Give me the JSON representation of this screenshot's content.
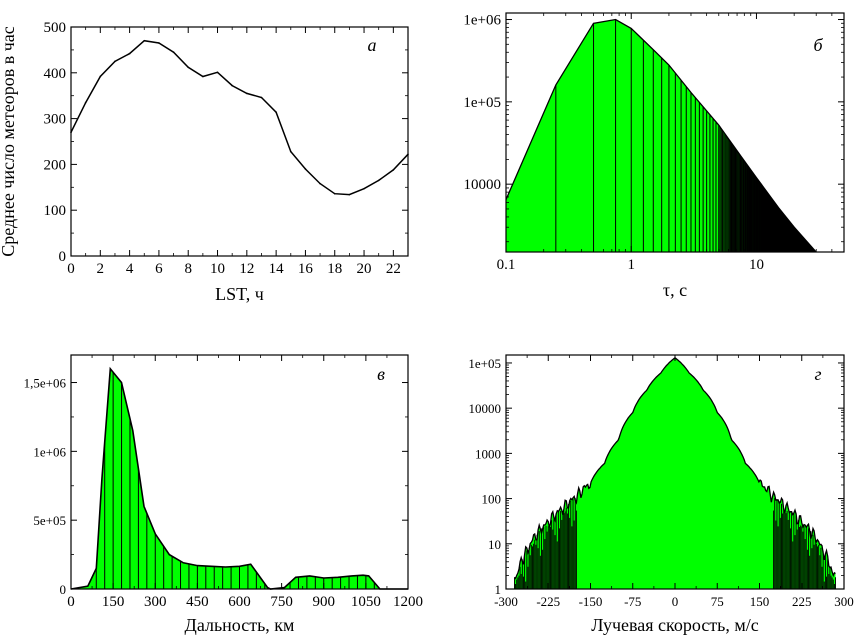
{
  "colors": {
    "fill": "#00ff00",
    "line": "#000000",
    "background": "#ffffff"
  },
  "chart_data": [
    {
      "id": "a",
      "type": "line",
      "panel_label": "а",
      "xlabel": "LST, ч",
      "ylabel": "Среднее число метеоров в час",
      "xlim": [
        0,
        23
      ],
      "ylim": [
        0,
        500
      ],
      "xticks": [
        "0",
        "2",
        "4",
        "6",
        "8",
        "10",
        "12",
        "14",
        "16",
        "18",
        "20",
        "22"
      ],
      "yticks": [
        "0",
        "100",
        "200",
        "300",
        "400",
        "500"
      ],
      "x": [
        0,
        1,
        2,
        3,
        4,
        5,
        6,
        7,
        8,
        9,
        10,
        11,
        12,
        13,
        14,
        15,
        16,
        17,
        18,
        19,
        20,
        21,
        22,
        23
      ],
      "y": [
        270,
        335,
        392,
        425,
        442,
        470,
        465,
        445,
        412,
        392,
        401,
        372,
        355,
        346,
        314,
        228,
        190,
        158,
        136,
        134,
        147,
        165,
        188,
        222
      ]
    },
    {
      "id": "b",
      "type": "area",
      "panel_label": "б",
      "xlabel": "τ, с",
      "ylabel": "",
      "xscale": "log",
      "yscale": "log",
      "xlim": [
        0.1,
        50
      ],
      "ylim": [
        1500,
        1200000
      ],
      "xticks": [
        "0.1",
        "1",
        "10"
      ],
      "yticks": [
        "10000",
        "1e+05",
        "1e+06"
      ],
      "x": [
        0.1,
        0.25,
        0.5,
        0.75,
        1.0,
        1.5,
        2.0,
        3.0,
        5.0,
        7.5,
        10,
        15,
        20,
        30
      ],
      "y": [
        6500,
        160000,
        900000,
        1000000,
        780000,
        430000,
        280000,
        130000,
        52000,
        22000,
        12000,
        5200,
        3000,
        1500
      ]
    },
    {
      "id": "c",
      "type": "area",
      "panel_label": "в",
      "xlabel": "Дальность, км",
      "ylabel": "",
      "xlim": [
        0,
        1200
      ],
      "ylim": [
        0,
        1700000
      ],
      "xticks": [
        "0",
        "150",
        "300",
        "450",
        "600",
        "750",
        "900",
        "1050",
        "1200"
      ],
      "yticks": [
        "0",
        "5e+05",
        "1e+06",
        "1,5e+06"
      ],
      "x": [
        0,
        60,
        90,
        110,
        140,
        180,
        220,
        260,
        300,
        350,
        400,
        450,
        500,
        550,
        600,
        640,
        700,
        710,
        760,
        800,
        850,
        900,
        950,
        1000,
        1040,
        1060,
        1100,
        1200
      ],
      "y": [
        0,
        20000,
        150000,
        800000,
        1600000,
        1500000,
        1150000,
        600000,
        400000,
        250000,
        190000,
        170000,
        165000,
        160000,
        165000,
        180000,
        10000,
        0,
        10000,
        85000,
        95000,
        80000,
        85000,
        95000,
        100000,
        95000,
        0,
        0
      ]
    },
    {
      "id": "d",
      "type": "area",
      "panel_label": "г",
      "xlabel": "Лучевая скорость, м/с",
      "ylabel": "",
      "yscale": "log",
      "xlim": [
        -300,
        300
      ],
      "ylim": [
        1,
        150000
      ],
      "xticks": [
        "-300",
        "-225",
        "-150",
        "-75",
        "0",
        "75",
        "150",
        "225",
        "300"
      ],
      "yticks": [
        "1",
        "10",
        "100",
        "1000",
        "10000",
        "1e+05"
      ],
      "x": [
        -280,
        -260,
        -240,
        -225,
        -200,
        -175,
        -150,
        -125,
        -100,
        -75,
        -50,
        -25,
        0,
        25,
        50,
        75,
        100,
        125,
        150,
        175,
        200,
        225,
        240,
        260,
        280
      ],
      "y": [
        2,
        8,
        20,
        30,
        60,
        110,
        220,
        600,
        2000,
        8000,
        25000,
        60000,
        130000,
        60000,
        25000,
        8000,
        2000,
        600,
        220,
        110,
        60,
        30,
        20,
        8,
        2
      ]
    }
  ]
}
